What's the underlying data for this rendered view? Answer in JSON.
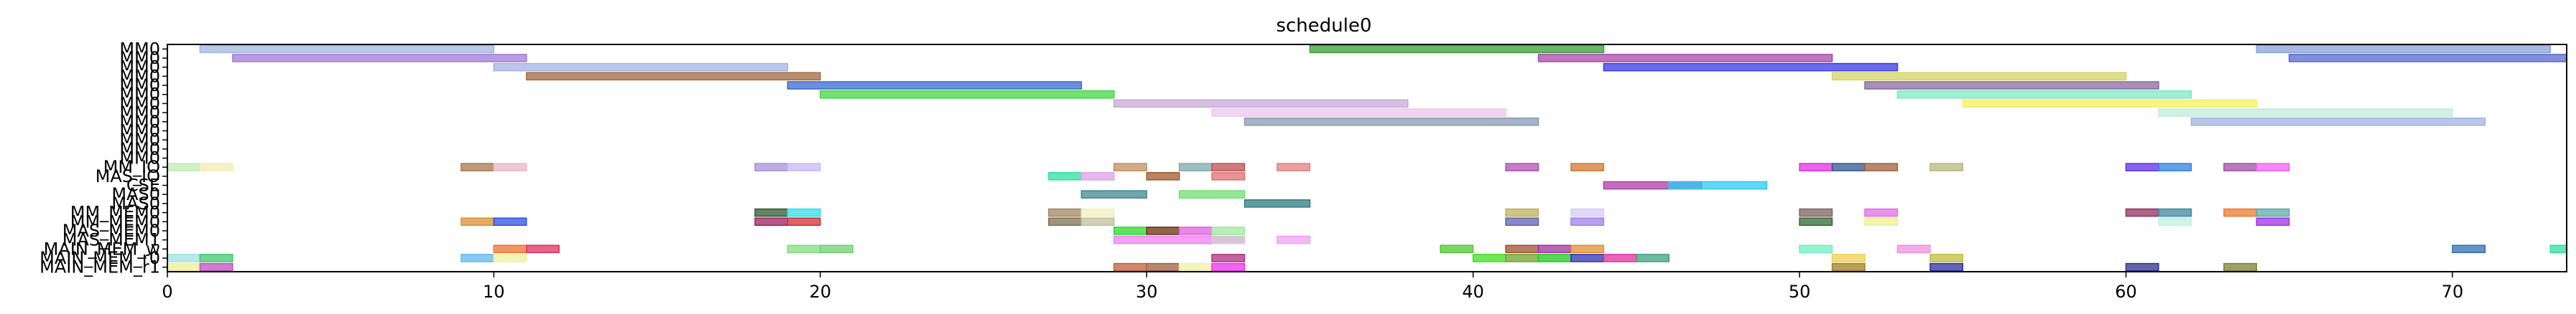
{
  "chart_data": {
    "type": "gantt",
    "title": "schedule0",
    "xlabel": "",
    "ylabel": "",
    "xlim": [
      0,
      73.5
    ],
    "x_ticks": [
      0,
      10,
      20,
      30,
      40,
      50,
      60,
      70
    ],
    "grid": false,
    "legend": "none",
    "rows": [
      "MM0",
      "MM0",
      "MM0",
      "MM0",
      "MM0",
      "MM0",
      "MM0",
      "MM0",
      "MM0",
      "MM0",
      "MM0",
      "MM0",
      "MM0",
      "MM_IO",
      "MAS_IO",
      "CSE",
      "MAS0",
      "MAS0",
      "MM_MEM0",
      "MM_MEM0",
      "MAS_MEM0",
      "MAS_MEM1",
      "MAIN_MEM_w",
      "MAIN_MEM_r0",
      "MAIN_MEM_r1"
    ],
    "tasks": [
      {
        "row": 0,
        "start": 1.0,
        "end": 10.0,
        "color": "#a0b8e0"
      },
      {
        "row": 0,
        "start": 35.0,
        "end": 44.0,
        "color": "#3a9e3a"
      },
      {
        "row": 0,
        "start": 64.0,
        "end": 73.0,
        "color": "#8aa2d8"
      },
      {
        "row": 1,
        "start": 2.0,
        "end": 11.0,
        "color": "#a27ad8"
      },
      {
        "row": 1,
        "start": 42.0,
        "end": 51.0,
        "color": "#a848a8"
      },
      {
        "row": 1,
        "start": 65.0,
        "end": 74.0,
        "color": "#5868d0"
      },
      {
        "row": 2,
        "start": 10.0,
        "end": 19.0,
        "color": "#a4b4e0"
      },
      {
        "row": 2,
        "start": 44.0,
        "end": 53.0,
        "color": "#3a3ae8"
      },
      {
        "row": 3,
        "start": 11.0,
        "end": 20.0,
        "color": "#a06a42"
      },
      {
        "row": 3,
        "start": 51.0,
        "end": 60.0,
        "color": "#d4d464"
      },
      {
        "row": 4,
        "start": 19.0,
        "end": 28.0,
        "color": "#3a6ad0"
      },
      {
        "row": 4,
        "start": 52.0,
        "end": 61.0,
        "color": "#8a6aa0"
      },
      {
        "row": 5,
        "start": 20.0,
        "end": 29.0,
        "color": "#44d844"
      },
      {
        "row": 5,
        "start": 53.0,
        "end": 62.0,
        "color": "#80e8c8"
      },
      {
        "row": 6,
        "start": 29.0,
        "end": 38.0,
        "color": "#c8a8d8"
      },
      {
        "row": 6,
        "start": 55.0,
        "end": 64.0,
        "color": "#f4f060"
      },
      {
        "row": 7,
        "start": 32.0,
        "end": 41.0,
        "color": "#ecc8ec"
      },
      {
        "row": 7,
        "start": 61.0,
        "end": 70.0,
        "color": "#c0ecdc"
      },
      {
        "row": 8,
        "start": 33.0,
        "end": 42.0,
        "color": "#8a9ab4"
      },
      {
        "row": 8,
        "start": 62.0,
        "end": 71.0,
        "color": "#a0b4e0"
      },
      {
        "row": 13,
        "start": 0.0,
        "end": 1.0,
        "color": "#c0ecb0"
      },
      {
        "row": 13,
        "start": 1.0,
        "end": 2.0,
        "color": "#f4ecb8"
      },
      {
        "row": 13,
        "start": 9.0,
        "end": 10.0,
        "color": "#a87850"
      },
      {
        "row": 13,
        "start": 10.0,
        "end": 11.0,
        "color": "#e8b8c8"
      },
      {
        "row": 13,
        "start": 18.0,
        "end": 19.0,
        "color": "#a890d8"
      },
      {
        "row": 13,
        "start": 19.0,
        "end": 20.0,
        "color": "#c8b8f4"
      },
      {
        "row": 13,
        "start": 29.0,
        "end": 30.0,
        "color": "#c09060"
      },
      {
        "row": 13,
        "start": 31.0,
        "end": 32.0,
        "color": "#80a8a8"
      },
      {
        "row": 13,
        "start": 32.0,
        "end": 33.0,
        "color": "#c05050"
      },
      {
        "row": 13,
        "start": 34.0,
        "end": 35.0,
        "color": "#e08080"
      },
      {
        "row": 13,
        "start": 41.0,
        "end": 42.0,
        "color": "#b050b0"
      },
      {
        "row": 13,
        "start": 43.0,
        "end": 44.0,
        "color": "#d07830"
      },
      {
        "row": 13,
        "start": 50.0,
        "end": 51.0,
        "color": "#e030e0"
      },
      {
        "row": 13,
        "start": 51.0,
        "end": 52.0,
        "color": "#305890"
      },
      {
        "row": 13,
        "start": 52.0,
        "end": 53.0,
        "color": "#a06040"
      },
      {
        "row": 13,
        "start": 54.0,
        "end": 55.0,
        "color": "#b8b880"
      },
      {
        "row": 13,
        "start": 60.0,
        "end": 61.0,
        "color": "#6030e8"
      },
      {
        "row": 13,
        "start": 61.0,
        "end": 62.0,
        "color": "#3080e0"
      },
      {
        "row": 13,
        "start": 63.0,
        "end": 64.0,
        "color": "#a050a8"
      },
      {
        "row": 13,
        "start": 64.0,
        "end": 65.0,
        "color": "#f060f0"
      },
      {
        "row": 14,
        "start": 27.0,
        "end": 28.0,
        "color": "#30e0a0"
      },
      {
        "row": 14,
        "start": 28.0,
        "end": 29.0,
        "color": "#e0a0e8"
      },
      {
        "row": 14,
        "start": 30.0,
        "end": 31.0,
        "color": "#a05a28"
      },
      {
        "row": 14,
        "start": 32.0,
        "end": 33.0,
        "color": "#e07070"
      },
      {
        "row": 15,
        "start": 44.0,
        "end": 47.0,
        "color": "#b03ea8"
      },
      {
        "row": 15,
        "start": 46.0,
        "end": 49.0,
        "color": "#30c8f4"
      },
      {
        "row": 16,
        "start": 28.0,
        "end": 30.0,
        "color": "#408890"
      },
      {
        "row": 16,
        "start": 31.0,
        "end": 33.0,
        "color": "#70e070"
      },
      {
        "row": 17,
        "start": 33.0,
        "end": 35.0,
        "color": "#307c80"
      },
      {
        "row": 18,
        "start": 18.0,
        "end": 19.0,
        "color": "#305830"
      },
      {
        "row": 18,
        "start": 19.0,
        "end": 20.0,
        "color": "#30e0e8"
      },
      {
        "row": 18,
        "start": 27.0,
        "end": 28.0,
        "color": "#a08860"
      },
      {
        "row": 18,
        "start": 28.0,
        "end": 29.0,
        "color": "#f0f0c0"
      },
      {
        "row": 18,
        "start": 41.0,
        "end": 42.0,
        "color": "#c0b060"
      },
      {
        "row": 18,
        "start": 43.0,
        "end": 44.0,
        "color": "#d8ccf4"
      },
      {
        "row": 18,
        "start": 50.0,
        "end": 51.0,
        "color": "#806060"
      },
      {
        "row": 18,
        "start": 52.0,
        "end": 53.0,
        "color": "#e070e0"
      },
      {
        "row": 18,
        "start": 60.0,
        "end": 61.0,
        "color": "#903060"
      },
      {
        "row": 18,
        "start": 61.0,
        "end": 62.0,
        "color": "#4088a0"
      },
      {
        "row": 18,
        "start": 63.0,
        "end": 64.0,
        "color": "#f07830"
      },
      {
        "row": 18,
        "start": 64.0,
        "end": 65.0,
        "color": "#60a8a8"
      },
      {
        "row": 19,
        "start": 9.0,
        "end": 10.0,
        "color": "#d89030"
      },
      {
        "row": 19,
        "start": 10.0,
        "end": 11.0,
        "color": "#3050e0"
      },
      {
        "row": 19,
        "start": 18.0,
        "end": 19.0,
        "color": "#a02060"
      },
      {
        "row": 19,
        "start": 19.0,
        "end": 20.0,
        "color": "#d03030"
      },
      {
        "row": 19,
        "start": 27.0,
        "end": 28.0,
        "color": "#807050"
      },
      {
        "row": 19,
        "start": 28.0,
        "end": 29.0,
        "color": "#c0c0a0"
      },
      {
        "row": 19,
        "start": 41.0,
        "end": 42.0,
        "color": "#6060b0"
      },
      {
        "row": 19,
        "start": 43.0,
        "end": 44.0,
        "color": "#a080e8"
      },
      {
        "row": 19,
        "start": 50.0,
        "end": 51.0,
        "color": "#306830"
      },
      {
        "row": 19,
        "start": 52.0,
        "end": 53.0,
        "color": "#f0f090"
      },
      {
        "row": 19,
        "start": 61.0,
        "end": 62.0,
        "color": "#c0f0e0"
      },
      {
        "row": 19,
        "start": 64.0,
        "end": 65.0,
        "color": "#a030e8"
      },
      {
        "row": 20,
        "start": 29.0,
        "end": 30.0,
        "color": "#30d830"
      },
      {
        "row": 20,
        "start": 30.0,
        "end": 31.0,
        "color": "#683010"
      },
      {
        "row": 20,
        "start": 31.0,
        "end": 32.0,
        "color": "#e060e0"
      },
      {
        "row": 20,
        "start": 32.0,
        "end": 33.0,
        "color": "#a0e8a0"
      },
      {
        "row": 21,
        "start": 29.0,
        "end": 33.0,
        "color": "#f080f0"
      },
      {
        "row": 21,
        "start": 32.0,
        "end": 33.0,
        "color": "#d0d0d0"
      },
      {
        "row": 21,
        "start": 34.0,
        "end": 35.0,
        "color": "#f0a0f0"
      },
      {
        "row": 22,
        "start": 10.0,
        "end": 11.0,
        "color": "#f07030"
      },
      {
        "row": 22,
        "start": 11.0,
        "end": 12.0,
        "color": "#e03060"
      },
      {
        "row": 22,
        "start": 19.0,
        "end": 20.0,
        "color": "#80e080"
      },
      {
        "row": 22,
        "start": 20.0,
        "end": 21.0,
        "color": "#70d070"
      },
      {
        "row": 22,
        "start": 39.0,
        "end": 40.0,
        "color": "#50c830"
      },
      {
        "row": 22,
        "start": 41.0,
        "end": 42.0,
        "color": "#a05030"
      },
      {
        "row": 22,
        "start": 42.0,
        "end": 43.0,
        "color": "#a030a0"
      },
      {
        "row": 22,
        "start": 43.0,
        "end": 44.0,
        "color": "#e09030"
      },
      {
        "row": 22,
        "start": 50.0,
        "end": 51.0,
        "color": "#70f0c0"
      },
      {
        "row": 22,
        "start": 53.0,
        "end": 54.0,
        "color": "#f090e0"
      },
      {
        "row": 22,
        "start": 70.0,
        "end": 71.0,
        "color": "#3070b0"
      },
      {
        "row": 22,
        "start": 73.0,
        "end": 74.0,
        "color": "#30e0a0"
      },
      {
        "row": 23,
        "start": 0.0,
        "end": 1.0,
        "color": "#a0e0e0"
      },
      {
        "row": 23,
        "start": 1.0,
        "end": 2.0,
        "color": "#40c870"
      },
      {
        "row": 23,
        "start": 9.0,
        "end": 10.0,
        "color": "#60b8f0"
      },
      {
        "row": 23,
        "start": 10.0,
        "end": 11.0,
        "color": "#f0f0a0"
      },
      {
        "row": 23,
        "start": 32.0,
        "end": 33.0,
        "color": "#b03080"
      },
      {
        "row": 23,
        "start": 40.0,
        "end": 41.0,
        "color": "#40e020"
      },
      {
        "row": 23,
        "start": 41.0,
        "end": 42.0,
        "color": "#70a030"
      },
      {
        "row": 23,
        "start": 42.0,
        "end": 43.0,
        "color": "#20c820"
      },
      {
        "row": 23,
        "start": 43.0,
        "end": 44.0,
        "color": "#3030b0"
      },
      {
        "row": 23,
        "start": 44.0,
        "end": 45.0,
        "color": "#e030a0"
      },
      {
        "row": 23,
        "start": 45.0,
        "end": 46.0,
        "color": "#40a080"
      },
      {
        "row": 23,
        "start": 51.0,
        "end": 52.0,
        "color": "#f0d050"
      },
      {
        "row": 23,
        "start": 54.0,
        "end": 55.0,
        "color": "#c0c040"
      },
      {
        "row": 24,
        "start": 0.0,
        "end": 1.0,
        "color": "#f0f090"
      },
      {
        "row": 24,
        "start": 1.0,
        "end": 2.0,
        "color": "#c050c0"
      },
      {
        "row": 24,
        "start": 29.0,
        "end": 30.0,
        "color": "#c06040"
      },
      {
        "row": 24,
        "start": 30.0,
        "end": 31.0,
        "color": "#a06040"
      },
      {
        "row": 24,
        "start": 31.0,
        "end": 32.0,
        "color": "#f0f0a0"
      },
      {
        "row": 24,
        "start": 32.0,
        "end": 33.0,
        "color": "#f030f0"
      },
      {
        "row": 24,
        "start": 51.0,
        "end": 52.0,
        "color": "#a08020"
      },
      {
        "row": 24,
        "start": 54.0,
        "end": 55.0,
        "color": "#3030a0"
      },
      {
        "row": 24,
        "start": 60.0,
        "end": 61.0,
        "color": "#303090"
      },
      {
        "row": 24,
        "start": 63.0,
        "end": 64.0,
        "color": "#808030"
      }
    ]
  }
}
